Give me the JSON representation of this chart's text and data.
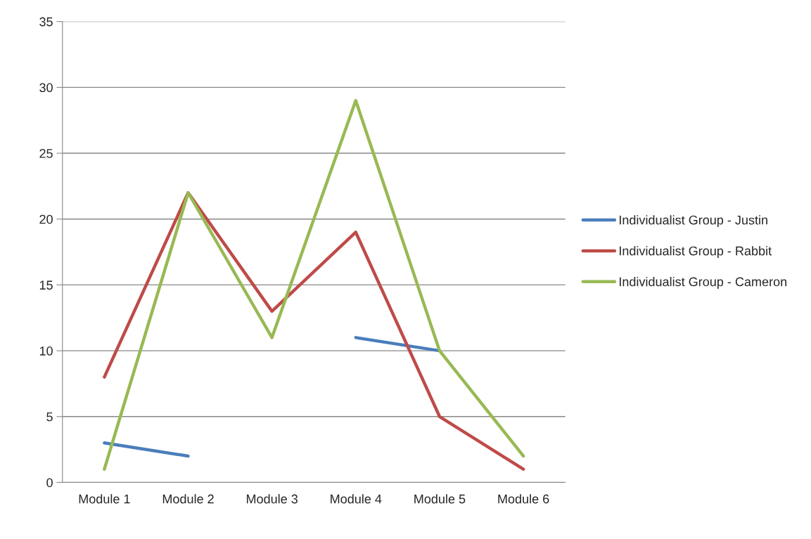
{
  "chart_data": {
    "type": "line",
    "categories": [
      "Module 1",
      "Module 2",
      "Module 3",
      "Module 4",
      "Module 5",
      "Module 6"
    ],
    "series": [
      {
        "name": "Individualist Group - Justin",
        "color": "#4a7ebb",
        "values": [
          3,
          2,
          null,
          11,
          10,
          null
        ]
      },
      {
        "name": "Individualist Group - Rabbit",
        "color": "#be4b48",
        "values": [
          8,
          22,
          13,
          19,
          5,
          1
        ]
      },
      {
        "name": "Individualist Group - Cameron",
        "color": "#98b954",
        "values": [
          1,
          22,
          11,
          29,
          10,
          2
        ]
      }
    ],
    "ylim": [
      0,
      35
    ],
    "yticks": [
      0,
      5,
      10,
      15,
      20,
      25,
      30,
      35
    ],
    "grid": "y",
    "legend": "right",
    "marker": "none",
    "line_style": "solid"
  }
}
